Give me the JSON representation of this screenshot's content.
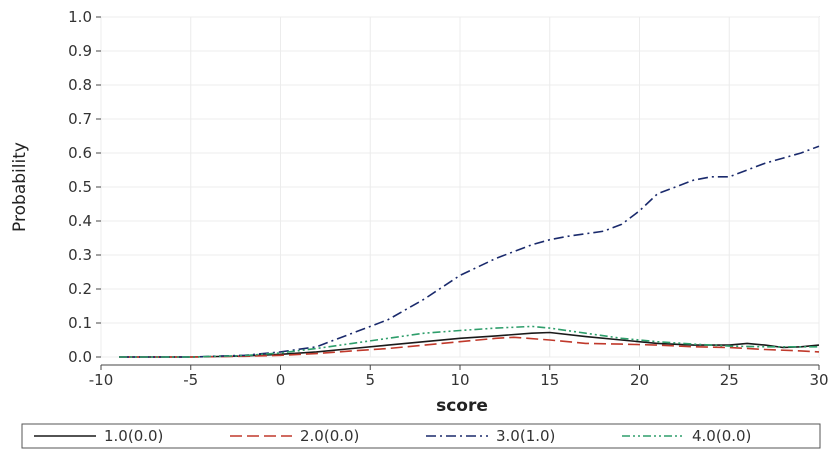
{
  "chart_data": {
    "type": "line",
    "xlabel": "score",
    "ylabel": "Probability",
    "xlim": [
      -10,
      30
    ],
    "ylim": [
      0,
      1.0
    ],
    "xticks": [
      -10,
      -5,
      0,
      5,
      10,
      15,
      20,
      25,
      30
    ],
    "yticks": [
      0.0,
      0.1,
      0.2,
      0.3,
      0.4,
      0.5,
      0.6,
      0.7,
      0.8,
      0.9,
      1.0
    ],
    "xtick_labels": [
      "-10",
      "-5",
      "0",
      "5",
      "10",
      "15",
      "20",
      "25",
      "30"
    ],
    "ytick_labels": [
      "0.0",
      "0.1",
      "0.2",
      "0.3",
      "0.4",
      "0.5",
      "0.6",
      "0.7",
      "0.8",
      "0.9",
      "1.0"
    ],
    "grid": true,
    "legend_position": "bottom",
    "series": [
      {
        "name": "1.0(0.0)",
        "color": "#1a1a1a",
        "dash": "solid",
        "x": [
          -9,
          -5,
          -2,
          0,
          2,
          4,
          6,
          8,
          10,
          12,
          14,
          15,
          17,
          19,
          21,
          23,
          25,
          26,
          27,
          28,
          29,
          30
        ],
        "y": [
          0.0,
          0.0,
          0.003,
          0.008,
          0.015,
          0.025,
          0.035,
          0.045,
          0.055,
          0.062,
          0.07,
          0.072,
          0.06,
          0.05,
          0.04,
          0.035,
          0.035,
          0.04,
          0.035,
          0.028,
          0.03,
          0.035
        ]
      },
      {
        "name": "2.0(0.0)",
        "color": "#c0392b",
        "dash": "dash",
        "x": [
          -9,
          -5,
          -2,
          0,
          2,
          4,
          6,
          8,
          10,
          12,
          13,
          15,
          17,
          19,
          21,
          23,
          25,
          27,
          29,
          30
        ],
        "y": [
          0.0,
          0.0,
          0.002,
          0.005,
          0.01,
          0.018,
          0.025,
          0.035,
          0.045,
          0.055,
          0.058,
          0.05,
          0.04,
          0.038,
          0.035,
          0.03,
          0.028,
          0.022,
          0.018,
          0.015
        ]
      },
      {
        "name": "3.0(1.0)",
        "color": "#1a2a6c",
        "dash": "dashdot",
        "x": [
          -9,
          -5,
          -2,
          0,
          2,
          4,
          6,
          8,
          10,
          12,
          14,
          15,
          16,
          18,
          19,
          20,
          21,
          22,
          23,
          24,
          25,
          26,
          27,
          28,
          29,
          30
        ],
        "y": [
          0.0,
          0.0,
          0.005,
          0.015,
          0.03,
          0.07,
          0.11,
          0.17,
          0.24,
          0.29,
          0.33,
          0.345,
          0.355,
          0.37,
          0.39,
          0.43,
          0.48,
          0.5,
          0.52,
          0.53,
          0.53,
          0.55,
          0.57,
          0.585,
          0.6,
          0.62
        ]
      },
      {
        "name": "4.0(0.0)",
        "color": "#2e9e6b",
        "dash": "dashdotdot",
        "x": [
          -9,
          -5,
          -2,
          0,
          2,
          4,
          6,
          8,
          10,
          12,
          14,
          15,
          17,
          19,
          21,
          23,
          25,
          27,
          29,
          30
        ],
        "y": [
          0.0,
          0.0,
          0.004,
          0.012,
          0.025,
          0.04,
          0.055,
          0.07,
          0.078,
          0.085,
          0.09,
          0.085,
          0.07,
          0.055,
          0.045,
          0.038,
          0.032,
          0.03,
          0.03,
          0.03
        ]
      }
    ]
  }
}
